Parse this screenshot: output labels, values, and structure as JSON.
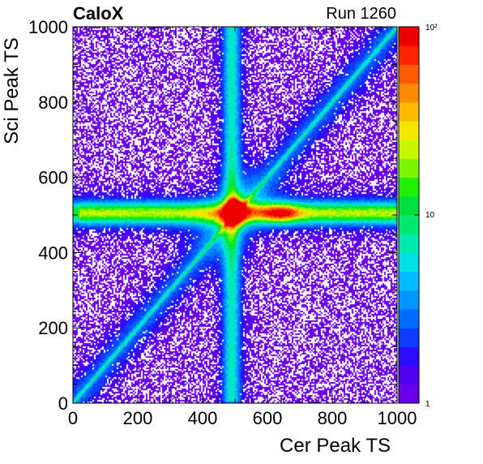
{
  "header": {
    "left_text": "CaloX",
    "right_text": "Run 1260"
  },
  "chart_data": {
    "type": "heatmap",
    "xlabel": "Cer Peak TS",
    "ylabel": "Sci Peak TS",
    "xlim": [
      0,
      1000
    ],
    "ylim": [
      0,
      1000
    ],
    "x_ticks": [
      "0",
      "200",
      "400",
      "600",
      "800",
      "1000"
    ],
    "y_ticks": [
      "0",
      "200",
      "400",
      "600",
      "800",
      "1000"
    ],
    "z_scale": "log",
    "zlim": [
      1,
      100
    ],
    "colorbar_labels": [
      "1",
      "10",
      "10²"
    ],
    "features": [
      {
        "kind": "diagonal",
        "x_range": [
          0,
          1000
        ],
        "y_range": [
          0,
          1000
        ]
      },
      {
        "kind": "horizontal band",
        "y_range": [
          470,
          540
        ]
      },
      {
        "kind": "vertical band",
        "x_range": [
          460,
          520
        ]
      },
      {
        "kind": "peak",
        "x": 500,
        "y": 505
      },
      {
        "kind": "peak",
        "x": 640,
        "y": 505
      }
    ],
    "palette": [
      "#6a00e8",
      "#5000f0",
      "#2a0cff",
      "#0d3cff",
      "#006dff",
      "#0096ff",
      "#00bbff",
      "#00dfe6",
      "#00e8b0",
      "#00e870",
      "#00e040",
      "#20f000",
      "#7cf500",
      "#c8f500",
      "#f5e800",
      "#ffb800",
      "#ff8c00",
      "#ff5a00",
      "#ff2400",
      "#ee0000"
    ]
  }
}
